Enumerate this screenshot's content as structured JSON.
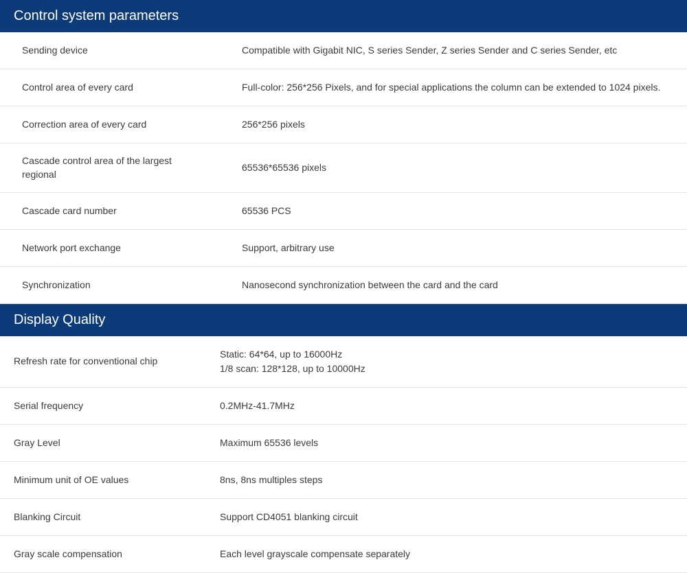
{
  "sections": [
    {
      "title": "Control system parameters",
      "rows": [
        {
          "label": "Sending device",
          "value": "Compatible with Gigabit NIC, S series Sender, Z series Sender and C series Sender, etc"
        },
        {
          "label": "Control area of every  card",
          "value": "Full-color: 256*256 Pixels, and for special applications the column can be extended to 1024 pixels."
        },
        {
          "label": "Correction area of every  card",
          "value": "256*256 pixels"
        },
        {
          "label": "Cascade control area of the largest regional",
          "value": "65536*65536 pixels"
        },
        {
          "label": "Cascade card number",
          "value": "65536 PCS"
        },
        {
          "label": "Network port exchange",
          "value": "Support, arbitrary use"
        },
        {
          "label": "Synchronization",
          "value": "Nanosecond synchronization between the card and the card"
        }
      ]
    },
    {
      "title": "Display Quality",
      "rows": [
        {
          "label": "Refresh rate for conventional chip",
          "value_lines": [
            "Static: 64*64, up to 16000Hz",
            "1/8 scan: 128*128, up to 10000Hz"
          ]
        },
        {
          "label": "Serial frequency",
          "value": "0.2MHz-41.7MHz"
        },
        {
          "label": "Gray Level",
          "value": "Maximum 65536 levels"
        },
        {
          "label": "Minimum unit of OE values",
          "value": "8ns, 8ns multiples steps"
        },
        {
          "label": "Blanking Circuit",
          "value": "Support CD4051 blanking circuit"
        },
        {
          "label": "Gray scale compensation",
          "value": "Each level grayscale compensate separately"
        }
      ]
    }
  ],
  "styling": {
    "header_bg": "#0d3b7a",
    "header_text_color": "#ffffff",
    "header_font_size": 20,
    "body_font_size": 14,
    "text_color": "#3a3a3a",
    "border_color": "#e4e4e4",
    "label_column_width": 320,
    "row_padding_left_section0": 32,
    "row_padding_left_section1": 20
  }
}
